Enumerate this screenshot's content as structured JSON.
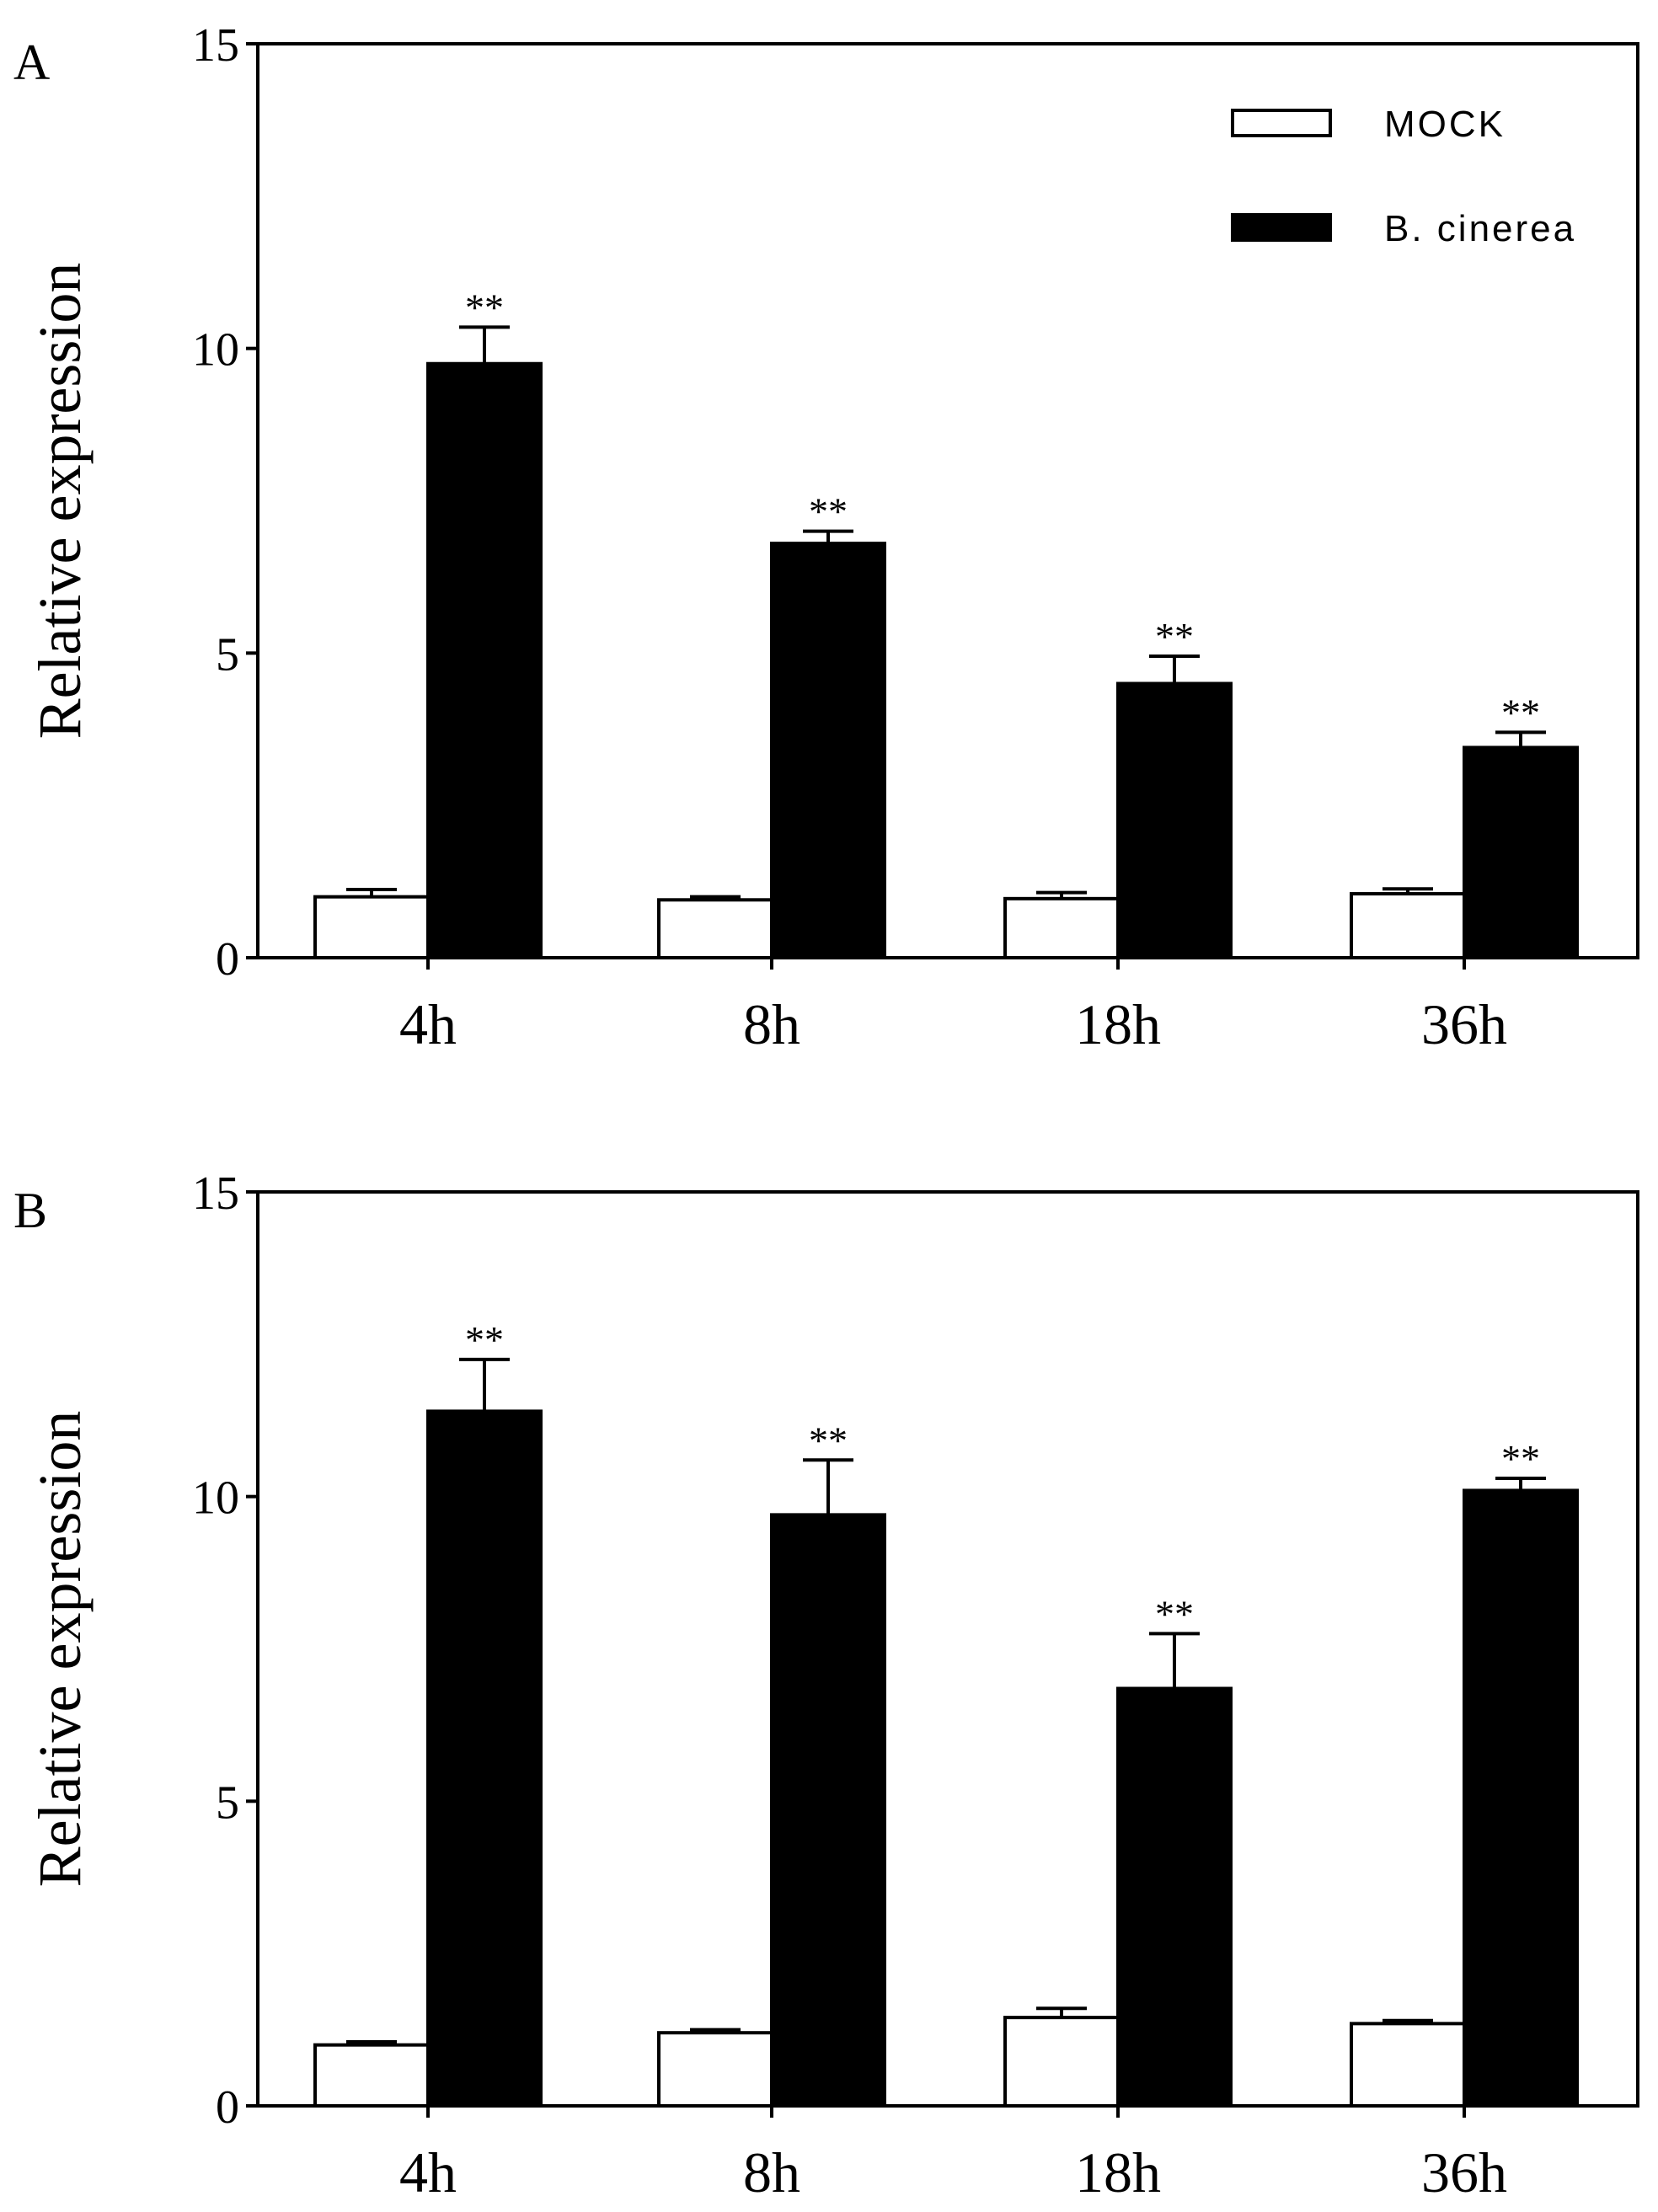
{
  "chart_data": [
    {
      "type": "bar",
      "panel_label": "A",
      "ylabel": "Relative expression",
      "xlabel": "",
      "ylim": [
        0,
        15
      ],
      "yticks": [
        0,
        5,
        10,
        15
      ],
      "grid": false,
      "categories": [
        "4h",
        "8h",
        "18h",
        "36h"
      ],
      "legend": {
        "position": "top-right",
        "entries": [
          "MOCK",
          "B. cinerea"
        ]
      },
      "series": [
        {
          "name": "MOCK",
          "values": [
            1.0,
            0.95,
            0.97,
            1.05
          ],
          "errors": [
            0.12,
            0.05,
            0.1,
            0.08
          ]
        },
        {
          "name": "B. cinerea",
          "values": [
            9.75,
            6.8,
            4.5,
            3.45
          ],
          "errors": [
            0.6,
            0.2,
            0.45,
            0.25
          ]
        }
      ],
      "annotations": [
        "**",
        "**",
        "**",
        "**"
      ]
    },
    {
      "type": "bar",
      "panel_label": "B",
      "ylabel": "Relative expression",
      "xlabel": "",
      "ylim": [
        0,
        15
      ],
      "yticks": [
        0,
        5,
        10,
        15
      ],
      "grid": false,
      "categories": [
        "4h",
        "8h",
        "18h",
        "36h"
      ],
      "series": [
        {
          "name": "MOCK",
          "values": [
            1.0,
            1.2,
            1.45,
            1.35
          ],
          "errors": [
            0.05,
            0.05,
            0.15,
            0.05
          ]
        },
        {
          "name": "B. cinerea",
          "values": [
            11.4,
            9.7,
            6.85,
            10.1
          ],
          "errors": [
            0.85,
            0.9,
            0.9,
            0.2
          ]
        }
      ],
      "annotations": [
        "**",
        "**",
        "**",
        "**"
      ]
    }
  ],
  "colors": {
    "mock_fill": "#ffffff",
    "infected_fill": "#000000",
    "axis": "#000000"
  }
}
